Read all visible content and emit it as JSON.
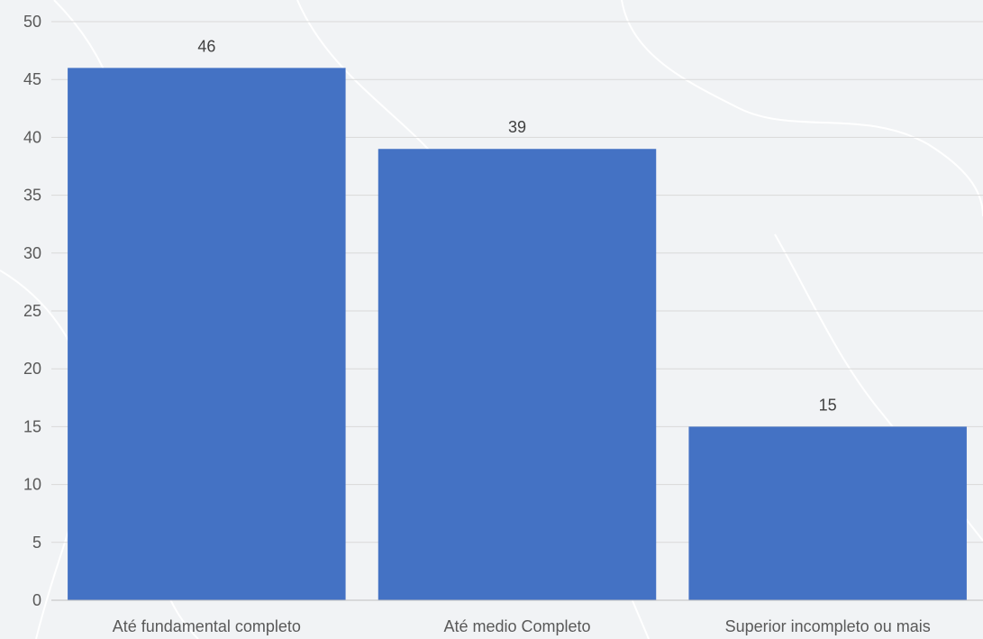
{
  "chart_data": {
    "type": "bar",
    "categories": [
      "Até fundamental completo",
      "Até medio Completo",
      "Superior incompleto ou mais"
    ],
    "values": [
      46,
      39,
      15
    ],
    "data_labels": [
      "46",
      "39",
      "15"
    ],
    "title": "",
    "xlabel": "",
    "ylabel": "",
    "ylim": [
      0,
      50
    ],
    "y_ticks": [
      0,
      5,
      10,
      15,
      20,
      25,
      30,
      35,
      40,
      45,
      50
    ],
    "grid": true,
    "legend": "none",
    "bar_color": "#4472C4"
  },
  "background": {
    "description_icon": "map-watermark"
  }
}
